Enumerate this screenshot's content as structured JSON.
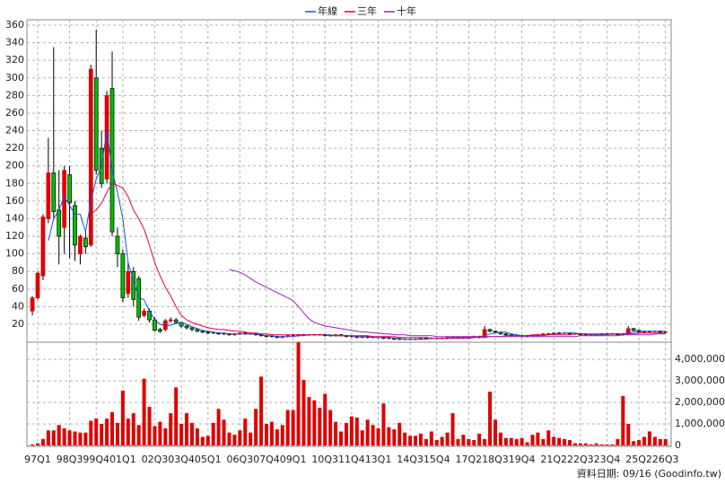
{
  "chart_data": {
    "type": "candlestick",
    "categories": [
      null,
      "97Q1",
      null,
      null,
      null,
      null,
      null,
      "98Q3",
      null,
      null,
      null,
      null,
      "99Q4",
      null,
      null,
      null,
      null,
      "01Q1",
      null,
      null,
      null,
      null,
      null,
      "02Q3",
      null,
      null,
      null,
      null,
      "03Q4",
      null,
      null,
      null,
      null,
      "05Q1",
      null,
      null,
      null,
      null,
      null,
      "06Q3",
      null,
      null,
      null,
      null,
      "07Q4",
      null,
      null,
      null,
      null,
      "09Q1",
      null,
      null,
      null,
      null,
      null,
      "10Q3",
      null,
      null,
      null,
      null,
      "11Q4",
      null,
      null,
      null,
      null,
      "13Q1",
      null,
      null,
      null,
      null,
      null,
      "14Q3",
      null,
      null,
      null,
      null,
      "15Q4",
      null,
      null,
      null,
      null,
      null,
      "17Q2",
      null,
      null,
      null,
      null,
      "18Q3",
      null,
      null,
      null,
      null,
      "19Q4",
      null,
      null,
      null,
      null,
      null,
      "21Q2",
      null,
      null,
      null,
      null,
      "22Q3",
      null,
      null,
      null,
      null,
      "23Q4",
      null,
      null,
      null,
      null,
      null,
      "25Q2",
      null,
      null,
      null,
      null,
      "26Q3"
    ],
    "open": [
      35,
      50,
      75,
      140,
      192,
      150,
      130,
      190,
      155,
      100,
      118,
      110,
      300,
      220,
      185,
      288,
      120,
      100,
      55,
      80,
      72,
      30,
      35,
      25,
      14,
      14,
      24,
      25,
      22,
      18,
      16,
      14,
      12,
      11,
      10,
      10,
      9,
      9,
      8,
      9,
      10,
      9,
      9,
      8,
      7,
      6,
      6,
      5,
      6,
      7,
      7,
      8,
      8,
      8,
      8,
      8,
      7,
      7,
      8,
      7,
      6,
      6,
      5,
      6,
      5,
      5,
      5,
      4,
      4,
      3,
      3,
      3,
      3,
      3,
      4,
      4,
      4,
      4,
      4,
      5,
      5,
      5,
      5,
      5,
      6,
      5,
      14,
      12,
      11,
      9,
      8,
      7,
      7,
      6,
      7,
      7,
      8,
      9,
      9,
      10,
      10,
      10,
      9,
      9,
      8,
      8,
      8,
      8,
      9,
      9,
      9,
      8,
      9,
      15,
      13,
      11,
      11,
      12,
      12,
      11
    ],
    "high": [
      52,
      80,
      145,
      232,
      335,
      195,
      200,
      200,
      160,
      122,
      125,
      315,
      355,
      240,
      285,
      330,
      130,
      105,
      90,
      85,
      75,
      38,
      38,
      28,
      16,
      26,
      28,
      27,
      23,
      19,
      17,
      15,
      13,
      12,
      11,
      11,
      10,
      10,
      10,
      11,
      11,
      10,
      10,
      9,
      8,
      7,
      7,
      7,
      8,
      8,
      9,
      9,
      9,
      9,
      9,
      9,
      8,
      9,
      9,
      8,
      7,
      7,
      7,
      7,
      6,
      6,
      6,
      5,
      5,
      4,
      4,
      4,
      4,
      5,
      5,
      5,
      5,
      5,
      6,
      6,
      6,
      6,
      6,
      7,
      7,
      18,
      15,
      13,
      12,
      10,
      9,
      8,
      8,
      8,
      8,
      9,
      10,
      10,
      11,
      11,
      11,
      11,
      10,
      10,
      9,
      9,
      9,
      10,
      10,
      10,
      10,
      10,
      18,
      16,
      14,
      12,
      13,
      13,
      13,
      12
    ],
    "low": [
      30,
      48,
      70,
      135,
      140,
      88,
      100,
      95,
      92,
      88,
      100,
      108,
      190,
      175,
      180,
      120,
      85,
      45,
      50,
      40,
      24,
      28,
      22,
      12,
      10,
      12,
      22,
      20,
      16,
      14,
      12,
      11,
      10,
      9,
      9,
      8,
      8,
      7,
      7,
      8,
      8,
      8,
      7,
      6,
      5,
      5,
      4,
      4,
      5,
      6,
      6,
      7,
      7,
      7,
      7,
      6,
      6,
      6,
      6,
      5,
      5,
      4,
      4,
      4,
      4,
      4,
      3,
      3,
      2,
      2,
      2,
      2,
      2,
      2,
      3,
      3,
      3,
      3,
      3,
      4,
      4,
      4,
      4,
      4,
      4,
      4,
      11,
      10,
      8,
      7,
      6,
      6,
      5,
      5,
      6,
      6,
      7,
      8,
      8,
      9,
      9,
      8,
      8,
      7,
      7,
      7,
      7,
      7,
      8,
      8,
      7,
      7,
      8,
      12,
      10,
      10,
      10,
      11,
      10,
      10
    ],
    "close": [
      50,
      78,
      142,
      192,
      148,
      120,
      195,
      158,
      110,
      120,
      108,
      310,
      195,
      180,
      280,
      125,
      100,
      50,
      80,
      48,
      28,
      35,
      25,
      13,
      12,
      24,
      25,
      22,
      18,
      16,
      14,
      12,
      11,
      10,
      10,
      9,
      9,
      8,
      9,
      10,
      9,
      9,
      8,
      7,
      6,
      6,
      5,
      6,
      7,
      7,
      8,
      8,
      8,
      8,
      8,
      7,
      7,
      8,
      7,
      6,
      6,
      5,
      6,
      5,
      5,
      5,
      4,
      4,
      3,
      3,
      3,
      3,
      3,
      4,
      4,
      4,
      4,
      4,
      5,
      5,
      5,
      5,
      5,
      6,
      5,
      14,
      12,
      11,
      9,
      8,
      7,
      7,
      6,
      7,
      7,
      8,
      9,
      9,
      10,
      10,
      10,
      9,
      9,
      8,
      8,
      8,
      8,
      9,
      9,
      9,
      8,
      9,
      15,
      13,
      11,
      11,
      12,
      12,
      11,
      11
    ],
    "up_color": "#e00000",
    "down_color": "#00c000",
    "ylim": [
      0,
      360
    ],
    "yticks": [
      20,
      40,
      60,
      80,
      100,
      120,
      140,
      160,
      180,
      200,
      220,
      240,
      260,
      280,
      300,
      320,
      340,
      360
    ],
    "grid": true,
    "series": [
      {
        "name": "年線",
        "color": "#1f4fd8",
        "values": [
          null,
          null,
          null,
          115,
          140,
          150,
          165,
          155,
          145,
          145,
          125,
          160,
          185,
          200,
          240,
          195,
          170,
          140,
          90,
          70,
          50,
          48,
          35,
          25,
          20,
          18,
          19,
          21,
          22,
          20,
          17,
          15,
          13,
          12,
          11,
          10,
          10,
          9,
          9,
          9,
          9,
          9,
          9,
          8,
          7,
          7,
          6,
          6,
          6,
          6,
          7,
          7,
          8,
          8,
          8,
          8,
          8,
          7,
          7,
          7,
          7,
          6,
          6,
          6,
          5,
          5,
          5,
          5,
          4,
          4,
          3,
          3,
          3,
          3,
          3,
          4,
          4,
          4,
          4,
          5,
          5,
          5,
          5,
          5,
          6,
          7,
          9,
          10,
          11,
          11,
          9,
          8,
          7,
          7,
          7,
          7,
          7,
          8,
          9,
          9,
          10,
          10,
          10,
          9,
          9,
          8,
          8,
          8,
          8,
          9,
          9,
          9,
          10,
          11,
          12,
          12,
          12,
          12,
          12,
          12
        ]
      },
      {
        "name": "三年",
        "color": "#e0004a",
        "values": [
          null,
          null,
          null,
          null,
          null,
          null,
          null,
          null,
          null,
          null,
          null,
          145,
          150,
          158,
          170,
          180,
          178,
          175,
          165,
          150,
          140,
          128,
          110,
          90,
          75,
          62,
          52,
          40,
          30,
          25,
          22,
          20,
          18,
          16,
          15,
          14,
          14,
          13,
          12,
          12,
          11,
          10,
          10,
          9,
          9,
          8,
          8,
          8,
          8,
          8,
          8,
          8,
          8,
          8,
          8,
          8,
          7,
          7,
          7,
          7,
          7,
          7,
          7,
          7,
          6,
          6,
          6,
          6,
          6,
          5,
          5,
          5,
          5,
          5,
          5,
          4,
          4,
          4,
          4,
          4,
          4,
          4,
          4,
          5,
          5,
          5,
          6,
          6,
          6,
          7,
          7,
          7,
          7,
          7,
          8,
          8,
          8,
          8,
          8,
          8,
          8,
          8,
          9,
          9,
          9,
          9,
          9,
          9,
          9,
          9,
          9,
          9,
          9,
          9,
          10,
          10,
          10,
          10,
          10,
          10
        ]
      },
      {
        "name": "十年",
        "color": "#9a1fb8",
        "values": [
          null,
          null,
          null,
          null,
          null,
          null,
          null,
          null,
          null,
          null,
          null,
          null,
          null,
          null,
          null,
          null,
          null,
          null,
          null,
          null,
          null,
          null,
          null,
          null,
          null,
          null,
          null,
          null,
          null,
          null,
          null,
          null,
          null,
          null,
          null,
          null,
          null,
          82,
          81,
          79,
          76,
          72,
          68,
          65,
          62,
          59,
          56,
          53,
          50,
          47,
          40,
          33,
          26,
          22,
          20,
          18,
          17,
          16,
          15,
          14,
          13,
          12,
          11,
          11,
          10,
          10,
          9,
          9,
          8,
          8,
          8,
          7,
          7,
          7,
          7,
          7,
          6,
          6,
          6,
          6,
          6,
          6,
          6,
          6,
          6,
          6,
          6,
          6,
          6,
          6,
          6,
          6,
          6,
          6,
          6,
          6,
          6,
          6,
          6,
          6,
          6,
          6,
          6,
          7,
          7,
          7,
          7,
          7,
          7,
          7,
          7,
          8,
          8,
          8,
          8,
          8,
          8,
          9,
          9,
          9
        ]
      }
    ],
    "volume": {
      "color": "#e00000",
      "ylim": [
        0,
        4800000
      ],
      "yticks": [
        0,
        {
          "value": 1000000,
          "label": "1,000,000"
        },
        {
          "value": 2000000,
          "label": "2,000,000"
        },
        {
          "value": 3000000,
          "label": "3,000,000"
        },
        {
          "value": 4000000,
          "label": "4,000,000"
        }
      ],
      "values": [
        50000,
        100000,
        300000,
        700000,
        700000,
        950000,
        800000,
        700000,
        650000,
        600000,
        600000,
        1150000,
        1250000,
        1000000,
        1250000,
        1550000,
        1050000,
        2550000,
        1250000,
        1500000,
        950000,
        3100000,
        1800000,
        900000,
        1100000,
        800000,
        1500000,
        2700000,
        1000000,
        1500000,
        1050000,
        800000,
        400000,
        450000,
        1050000,
        1700000,
        1200000,
        600000,
        500000,
        700000,
        1250000,
        600000,
        1700000,
        3200000,
        1000000,
        1100000,
        750000,
        950000,
        1650000,
        1650000,
        4800000,
        3050000,
        2250000,
        2100000,
        1750000,
        2400000,
        1650000,
        1100000,
        650000,
        1050000,
        1350000,
        1300000,
        700000,
        1200000,
        950000,
        800000,
        1950000,
        850000,
        750000,
        1050000,
        600000,
        450000,
        450000,
        550000,
        300000,
        650000,
        250000,
        400000,
        600000,
        1500000,
        300000,
        500000,
        300000,
        250000,
        550000,
        300000,
        2500000,
        1200000,
        600000,
        350000,
        350000,
        300000,
        350000,
        150000,
        500000,
        600000,
        300000,
        700000,
        400000,
        350000,
        300000,
        250000,
        100000,
        100000,
        100000,
        50000,
        100000,
        50000,
        50000,
        50000,
        300000,
        2300000,
        1000000,
        200000,
        250000,
        400000,
        650000,
        400000,
        300000,
        300000
      ]
    },
    "footer": "資料日期: 09/16  (Goodinfo.tw)"
  }
}
